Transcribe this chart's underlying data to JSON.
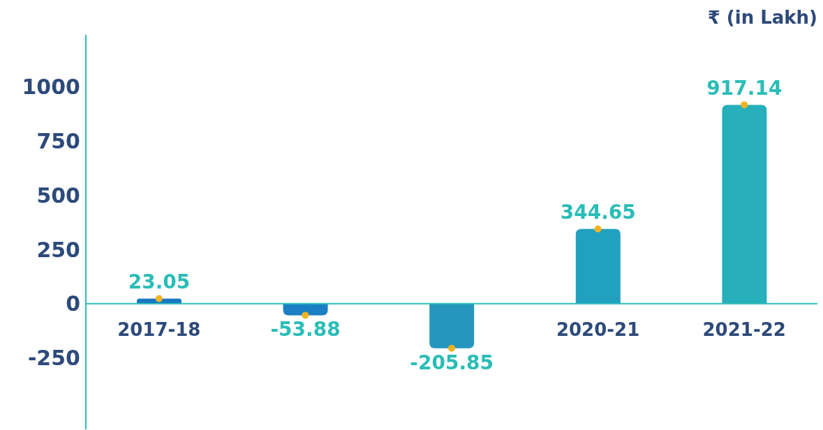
{
  "chart_data": {
    "type": "bar",
    "ylabel": "₹ (in Lakh)",
    "categories": [
      "2017-18",
      null,
      null,
      "2020-21",
      "2021-22"
    ],
    "series": [
      {
        "values": [
          23.05,
          -53.88,
          -205.85,
          344.65,
          917.14
        ],
        "value_labels": [
          "23.05",
          "-53.88",
          "-205.85",
          "344.65",
          "917.14"
        ],
        "colors": [
          "#1877c2",
          "#1a80c3",
          "#2597be",
          "#22a0c0",
          "#27afbb"
        ]
      },
      {
        "type": "scatter",
        "color": "#f0b323",
        "marker": "circle",
        "values": [
          23.05,
          -53.88,
          -205.85,
          344.65,
          917.14
        ]
      }
    ],
    "ylim": [
      -580,
      1240
    ],
    "yticks": [
      -250,
      0,
      250,
      500,
      750,
      1000
    ]
  }
}
